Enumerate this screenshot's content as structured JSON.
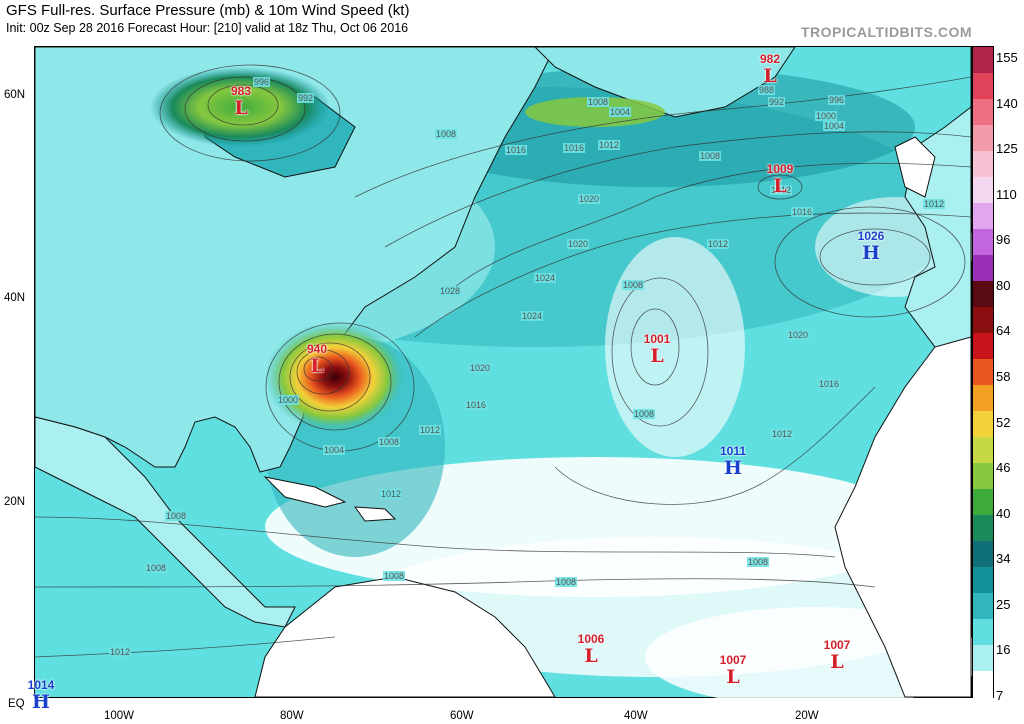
{
  "header": {
    "title": "GFS Full-res. Surface Pressure (mb) & 10m Wind Speed (kt)",
    "subtitle": "Init: 00z Sep 28 2016   Forecast Hour: [210]   valid at 18z Thu, Oct 06 2016",
    "credit": "TROPICALTIDBITS.COM"
  },
  "axes": {
    "lat_labels": [
      "60N",
      "40N",
      "20N",
      "EQ"
    ],
    "lon_labels": [
      "100W",
      "80W",
      "60W",
      "40W",
      "20W"
    ]
  },
  "pressure_systems": [
    {
      "id": "low-hudson",
      "type": "L",
      "value": "983"
    },
    {
      "id": "low-greenland",
      "type": "L",
      "value": "982"
    },
    {
      "id": "low-north-atlantic",
      "type": "L",
      "value": "1009"
    },
    {
      "id": "high-azores",
      "type": "H",
      "value": "1026"
    },
    {
      "id": "low-hurricane",
      "type": "L",
      "value": "940"
    },
    {
      "id": "low-mid-atlantic",
      "type": "L",
      "value": "1001"
    },
    {
      "id": "high-subtropical",
      "type": "H",
      "value": "1011"
    },
    {
      "id": "low-itcz-west",
      "type": "L",
      "value": "1006"
    },
    {
      "id": "low-itcz-mid",
      "type": "L",
      "value": "1007"
    },
    {
      "id": "low-itcz-east",
      "type": "L",
      "value": "1007"
    },
    {
      "id": "high-equator",
      "type": "H",
      "value": "1014"
    }
  ],
  "isobar_labels": [
    "996",
    "992",
    "1008",
    "1016",
    "1012",
    "1020",
    "1028",
    "1024",
    "1008",
    "1020",
    "1016",
    "1012",
    "1008",
    "1004",
    "1000",
    "1008",
    "1008",
    "1008",
    "1012",
    "1016",
    "1020",
    "1024",
    "1012",
    "1008",
    "1016",
    "1012",
    "1020",
    "1016",
    "1012",
    "988",
    "992",
    "996",
    "1000",
    "1004",
    "1008",
    "1012",
    "1004",
    "1008",
    "1012",
    "1008",
    "1008"
  ],
  "colorbar": {
    "labels": [
      "155",
      "140",
      "125",
      "110",
      "96",
      "80",
      "64",
      "58",
      "52",
      "46",
      "40",
      "34",
      "25",
      "16",
      "7"
    ],
    "colors": [
      "#b0244c",
      "#e0425a",
      "#ee6e82",
      "#f39bab",
      "#f7c2d4",
      "#f4d6f0",
      "#e2a6ee",
      "#c266e0",
      "#9b2fb8",
      "#5a0a12",
      "#8b0f10",
      "#c7141a",
      "#e9561e",
      "#f2a023",
      "#f3d13a",
      "#c6d843",
      "#86c83f",
      "#3faa3c",
      "#1a8a5a",
      "#10707a",
      "#14909a",
      "#30b6bc",
      "#5fdfe0",
      "#aaf0f0",
      "#ffffff"
    ],
    "unit": "kt"
  }
}
